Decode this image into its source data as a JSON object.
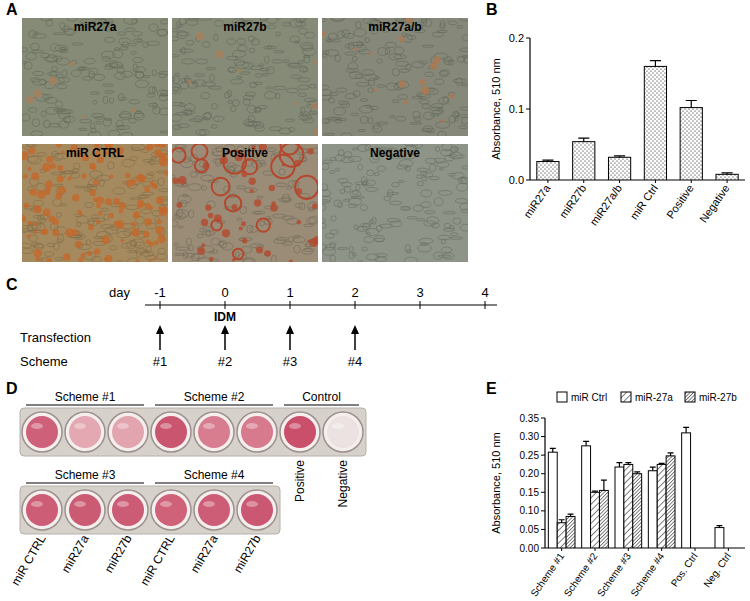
{
  "panel_labels": [
    "A",
    "B",
    "C",
    "D",
    "E"
  ],
  "panel_a": {
    "images": [
      "miR27a",
      "miR27b",
      "miR27a/b",
      "miR CTRL",
      "Positive",
      "Negative"
    ]
  },
  "panel_c": {
    "axis_label": "day",
    "days": [
      "-1",
      "0",
      "1",
      "2",
      "3",
      "4"
    ],
    "event": {
      "label": "IDM",
      "day": "0"
    },
    "row_labels": [
      "Transfection",
      "Scheme"
    ],
    "schemes": [
      {
        "label": "#1",
        "day": "-1"
      },
      {
        "label": "#2",
        "day": "0"
      },
      {
        "label": "#3",
        "day": "1"
      },
      {
        "label": "#4",
        "day": "2"
      }
    ]
  },
  "panel_d": {
    "rows": [
      {
        "groups": [
          {
            "label": "Scheme #1",
            "wells": [
              null,
              null,
              null
            ],
            "colors": [
              "#cf6079",
              "#e3a8b2",
              "#e2a4af"
            ]
          },
          {
            "label": "Scheme #2",
            "wells": [
              null,
              null,
              null
            ],
            "colors": [
              "#c9556f",
              "#d87c90",
              "#d77a8e"
            ]
          },
          {
            "label": "Control",
            "wells": [
              "Positive",
              "Negative"
            ],
            "colors": [
              "#c94f6a",
              "#ece2e1"
            ]
          }
        ]
      },
      {
        "groups": [
          {
            "label": "Scheme #3",
            "wells": [
              "miR CTRL",
              "miR27a",
              "miR27b"
            ],
            "colors": [
              "#cd5d76",
              "#cb5a73",
              "#cc5c75"
            ]
          },
          {
            "label": "Scheme #4",
            "wells": [
              "miR CTRL",
              "miR27a",
              "miR27b"
            ],
            "colors": [
              "#cf6179",
              "#cd5d76",
              "#ca5872"
            ]
          }
        ]
      }
    ]
  },
  "chart_data": [
    {
      "type": "bar",
      "ylabel": "Absorbance, 510 nm",
      "categories": [
        "miR27a",
        "miR27b",
        "miR27a/b",
        "miR Ctrl",
        "Positive",
        "Negative"
      ],
      "values": [
        0.026,
        0.054,
        0.032,
        0.16,
        0.102,
        0.008
      ],
      "errors": [
        0.002,
        0.005,
        0.002,
        0.008,
        0.01,
        0.002
      ],
      "color": "#ffffff",
      "ylim": [
        0,
        0.2
      ],
      "yticks": [
        {
          "value": 0,
          "label": "0.0"
        },
        0.1,
        0.2
      ]
    },
    {
      "type": "bar",
      "ylabel": "Absorbance, 510 nm",
      "categories": [
        "Scheme #1",
        "Scheme #2",
        "Scheme #3",
        "Scheme #4",
        "Pos. Ctrl",
        "Neg. Ctrl"
      ],
      "series": [
        {
          "name": "miR Ctrl",
          "color": "#ffffff",
          "values": [
            0.258,
            0.275,
            0.218,
            0.208,
            0.31,
            0.055
          ],
          "errors": [
            0.01,
            0.012,
            0.012,
            0.01,
            0.015,
            0.005
          ]
        },
        {
          "name": "miR-27a",
          "color": "#ffffff",
          "values": [
            0.068,
            0.15,
            0.225,
            0.225,
            null,
            null
          ],
          "errors": [
            0.008,
            0.003,
            0.005,
            0.003,
            null,
            null
          ]
        },
        {
          "name": "miR-27b",
          "color": "#ffffff",
          "values": [
            0.085,
            0.155,
            0.2,
            0.248,
            null,
            null
          ],
          "errors": [
            0.006,
            0.028,
            0.005,
            0.008,
            null,
            null
          ]
        }
      ],
      "ylim": [
        0,
        0.35
      ],
      "yticks": [
        {
          "value": 0,
          "label": "0.00"
        },
        0.05,
        {
          "value": 0.1,
          "label": "0.10"
        },
        0.15,
        {
          "value": 0.2,
          "label": "0.20"
        },
        0.25,
        {
          "value": 0.3,
          "label": "0.30"
        },
        0.35
      ],
      "legend": "top"
    }
  ]
}
